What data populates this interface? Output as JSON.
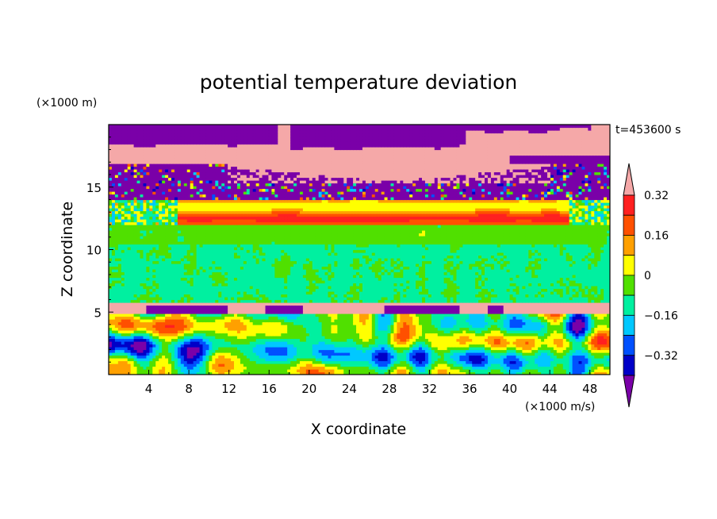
{
  "chart_data": {
    "type": "heatmap",
    "title": "potential temperature deviation",
    "xlabel": "X coordinate",
    "ylabel": "Z coordinate",
    "x_unit": "(×1000 m/s)",
    "y_unit": "(×1000 m)",
    "time_label": "t=453600 s",
    "xlim": [
      0,
      50
    ],
    "ylim": [
      0,
      20
    ],
    "x_ticks": [
      "4",
      "8",
      "12",
      "16",
      "20",
      "24",
      "28",
      "32",
      "36",
      "40",
      "44",
      "48"
    ],
    "y_ticks": [
      "5",
      "10",
      "15"
    ],
    "colorbar": {
      "tick_labels": [
        "0.32",
        "0.16",
        "0",
        "−0.16",
        "−0.32"
      ],
      "levels": [
        -0.4,
        -0.32,
        -0.24,
        -0.16,
        -0.08,
        0,
        0.08,
        0.16,
        0.24,
        0.32,
        0.4
      ],
      "colors": [
        "#7a00a8",
        "#0000c8",
        "#0050ff",
        "#00c8ff",
        "#00f0a0",
        "#50e000",
        "#ffff00",
        "#ffa000",
        "#ff5000",
        "#ff2020",
        "#f5a8a8"
      ],
      "extend": "both"
    },
    "layers": [
      {
        "z_range": [
          0,
          4.8
        ],
        "pattern": "turbulent mixed, range -0.4 to 0.4"
      },
      {
        "z_range": [
          4.8,
          5.8
        ],
        "pattern": "positive (>0.4) with negative lenses"
      },
      {
        "z_range": [
          5.8,
          12
        ],
        "pattern": "near zero (-0.08 to 0.08)"
      },
      {
        "z_range": [
          12,
          14
        ],
        "pattern": "positive 0.16 to 0.4"
      },
      {
        "z_range": [
          14,
          17
        ],
        "pattern": "mixed negative (< -0.4) and positive (> 0.4)"
      },
      {
        "z_range": [
          17,
          20
        ],
        "pattern": "positive (> 0.4) with negative patches"
      }
    ]
  }
}
